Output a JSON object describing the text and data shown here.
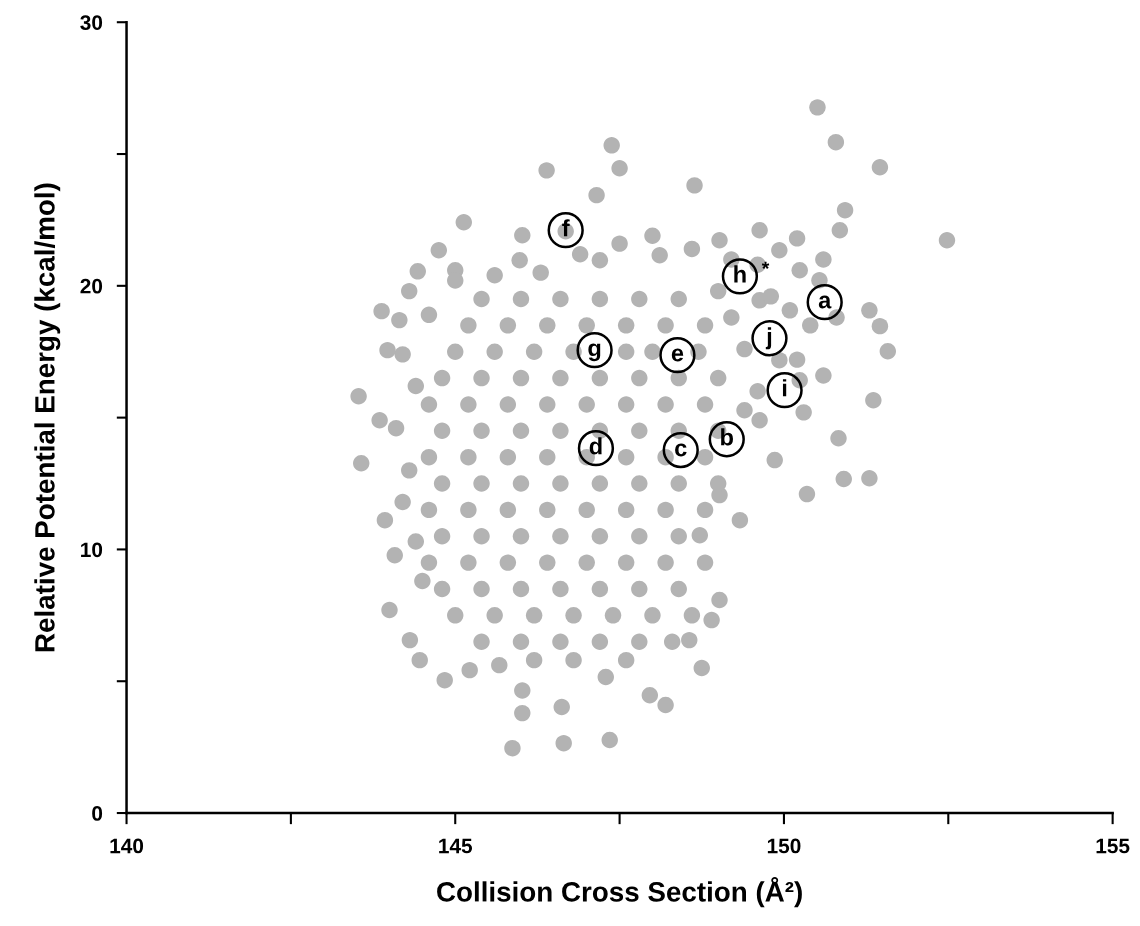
{
  "chart_data": {
    "type": "scatter",
    "xlabel": "Collision Cross Section (Å²)",
    "ylabel": "Relative Potential Energy (kcal/mol)",
    "xlim": [
      140,
      155
    ],
    "ylim": [
      0,
      30
    ],
    "xticks": [
      140,
      {
        "value": 142.5,
        "label": null
      },
      145,
      {
        "value": 147.5,
        "label": null
      },
      150,
      {
        "value": 152.5,
        "label": null
      },
      155
    ],
    "yticks": [
      0,
      {
        "value": 5,
        "label": null
      },
      10,
      {
        "value": 15,
        "label": null
      },
      20,
      {
        "value": 25,
        "label": null
      },
      30
    ],
    "grid": false,
    "legend": false,
    "marker": "circle",
    "series": [
      {
        "color": "#b3b3b3",
        "x": [
          143.53,
          143.57,
          143.88,
          152.48,
          150.51,
          150.79,
          151.46,
          150.83,
          151.3,
          150.91,
          150.35,
          151.58,
          151.36,
          151.46,
          151.3,
          145.87,
          146.65,
          147.35,
          146.02,
          146.62,
          147.96,
          147.29,
          148.2,
          148.75,
          146.02,
          147.38,
          147.5,
          146.39,
          147.15,
          148.64,
          146.68,
          146.02,
          145.13,
          144.43,
          144.75,
          145.0,
          143.93,
          144.0,
          144.31,
          144.46,
          144.84,
          145.22,
          145.67,
          144.08,
          143.85,
          143.97,
          144.15,
          148.72,
          149.02,
          149.4,
          149.02,
          148.9,
          148.56,
          149.33,
          145.98,
          147.2,
          148.11,
          149.02,
          149.63,
          149.93,
          150.24,
          150.85,
          150.93,
          149.63,
          150.09,
          150.54,
          149.93,
          150.24,
          149.63,
          149.86,
          149.2,
          149.6,
          150.2,
          150.6,
          149.8,
          150.4,
          150.8,
          149.4,
          150.2,
          150.6,
          149.6,
          150.3,
          149.2,
          149.0,
          144.3,
          144.6,
          144.2,
          144.4,
          144.1,
          144.3,
          144.2,
          144.4,
          144.5,
          145.0,
          145.6,
          146.3,
          146.9,
          147.5,
          148.0,
          148.6,
          145.4,
          146.0,
          146.6,
          147.2,
          147.8,
          148.4,
          145.2,
          145.8,
          146.4,
          147.0,
          147.6,
          148.2,
          148.8,
          145.0,
          145.6,
          146.2,
          146.8,
          147.6,
          148.0,
          148.7,
          144.8,
          145.4,
          146.0,
          146.6,
          147.2,
          147.8,
          148.4,
          149.0,
          144.6,
          145.2,
          145.8,
          146.4,
          147.0,
          147.6,
          148.2,
          148.8,
          144.8,
          145.4,
          146.0,
          146.6,
          147.2,
          147.8,
          148.4,
          149.0,
          144.6,
          145.2,
          145.8,
          146.4,
          147.0,
          147.6,
          148.2,
          148.8,
          144.8,
          145.4,
          146.0,
          146.6,
          147.2,
          147.8,
          148.4,
          149.0,
          144.6,
          145.2,
          145.8,
          146.4,
          147.0,
          147.6,
          148.2,
          148.8,
          144.8,
          145.4,
          146.0,
          146.6,
          147.2,
          147.8,
          148.4,
          144.6,
          145.2,
          145.8,
          146.4,
          147.0,
          147.6,
          148.2,
          148.8,
          144.8,
          145.4,
          146.0,
          146.6,
          147.2,
          147.8,
          148.4,
          145.0,
          145.6,
          146.2,
          146.8,
          147.4,
          148.0,
          148.6,
          145.4,
          146.0,
          146.6,
          147.2,
          147.8,
          148.3,
          146.2,
          146.8,
          147.6
        ],
        "values": [
          15.81,
          13.27,
          19.04,
          21.73,
          26.77,
          25.45,
          24.5,
          14.22,
          12.7,
          12.67,
          12.1,
          17.52,
          15.66,
          18.47,
          19.07,
          2.46,
          2.65,
          2.77,
          3.79,
          4.02,
          4.47,
          5.16,
          4.1,
          5.5,
          4.65,
          25.33,
          24.46,
          24.38,
          23.44,
          23.81,
          22.07,
          21.92,
          22.41,
          20.55,
          21.35,
          20.59,
          11.11,
          7.7,
          6.56,
          5.8,
          5.04,
          5.42,
          5.61,
          9.78,
          14.9,
          17.56,
          18.7,
          10.54,
          12.06,
          15.28,
          8.08,
          7.32,
          6.56,
          11.11,
          20.97,
          20.97,
          21.16,
          21.73,
          22.11,
          21.35,
          20.59,
          22.11,
          22.87,
          19.45,
          19.07,
          20.21,
          17.18,
          16.42,
          14.9,
          13.39,
          21.0,
          20.8,
          21.8,
          21.0,
          19.6,
          18.5,
          18.8,
          17.6,
          17.2,
          16.6,
          16.0,
          15.2,
          18.8,
          19.8,
          19.8,
          18.9,
          17.4,
          16.2,
          14.6,
          13.0,
          11.8,
          10.3,
          8.8,
          20.2,
          20.4,
          20.5,
          21.2,
          21.6,
          21.9,
          21.4,
          19.5,
          19.5,
          19.5,
          19.5,
          19.5,
          19.5,
          18.5,
          18.5,
          18.5,
          18.5,
          18.5,
          18.5,
          18.5,
          17.5,
          17.5,
          17.5,
          17.5,
          17.5,
          17.5,
          17.5,
          16.5,
          16.5,
          16.5,
          16.5,
          16.5,
          16.5,
          16.5,
          16.5,
          15.5,
          15.5,
          15.5,
          15.5,
          15.5,
          15.5,
          15.5,
          15.5,
          14.5,
          14.5,
          14.5,
          14.5,
          14.5,
          14.5,
          14.5,
          14.5,
          13.5,
          13.5,
          13.5,
          13.5,
          13.5,
          13.5,
          13.5,
          13.5,
          12.5,
          12.5,
          12.5,
          12.5,
          12.5,
          12.5,
          12.5,
          12.5,
          11.5,
          11.5,
          11.5,
          11.5,
          11.5,
          11.5,
          11.5,
          11.5,
          10.5,
          10.5,
          10.5,
          10.5,
          10.5,
          10.5,
          10.5,
          9.5,
          9.5,
          9.5,
          9.5,
          9.5,
          9.5,
          9.5,
          9.5,
          8.5,
          8.5,
          8.5,
          8.5,
          8.5,
          8.5,
          8.5,
          7.5,
          7.5,
          7.5,
          7.5,
          7.5,
          7.5,
          7.5,
          6.5,
          6.5,
          6.5,
          6.5,
          6.5,
          6.5,
          5.8,
          5.8,
          5.8
        ]
      }
    ],
    "annotations": [
      {
        "text": "a",
        "x": 150.62,
        "y": 19.38
      },
      {
        "text": "b",
        "x": 149.13,
        "y": 14.18
      },
      {
        "text": "c",
        "x": 148.43,
        "y": 13.77
      },
      {
        "text": "d",
        "x": 147.14,
        "y": 13.84
      },
      {
        "text": "e",
        "x": 148.38,
        "y": 17.37
      },
      {
        "text": "f",
        "x": 146.68,
        "y": 22.11
      },
      {
        "text": "g",
        "x": 147.12,
        "y": 17.56
      },
      {
        "text": "h",
        "x": 149.33,
        "y": 20.36
      },
      {
        "text": "i",
        "x": 150.01,
        "y": 16.04
      },
      {
        "text": "j",
        "x": 149.78,
        "y": 18.01
      },
      {
        "text": "*",
        "x": 149.72,
        "y": 20.6
      }
    ]
  }
}
